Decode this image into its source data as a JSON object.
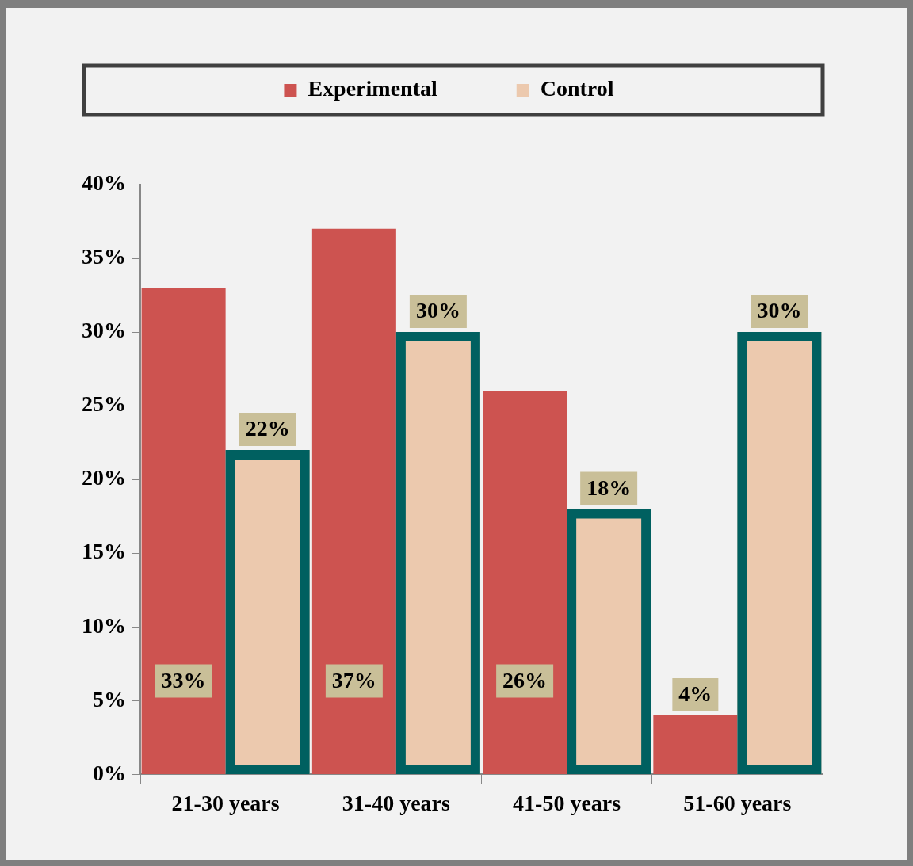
{
  "chart_data": {
    "type": "bar",
    "categories": [
      "21-30 years",
      "31-40 years",
      "41-50 years",
      "51-60 years"
    ],
    "series": [
      {
        "name": "Experimental",
        "color": "#cd5350",
        "values": [
          33,
          37,
          26,
          4
        ],
        "value_labels": [
          "33%",
          "37%",
          "26%",
          "4%"
        ]
      },
      {
        "name": "Control",
        "color": "#ecc9ae",
        "values": [
          22,
          30,
          18,
          30
        ],
        "value_labels": [
          "22%",
          "30%",
          "18%",
          "30%"
        ]
      }
    ],
    "ylim": [
      0,
      40
    ],
    "yticks": [
      {
        "value": 0,
        "label": "0%"
      },
      {
        "value": 5,
        "label": "5%"
      },
      {
        "value": 10,
        "label": "10%"
      },
      {
        "value": 15,
        "label": "15%"
      },
      {
        "value": 20,
        "label": "20%"
      },
      {
        "value": 25,
        "label": "25%"
      },
      {
        "value": 30,
        "label": "30%"
      },
      {
        "value": 35,
        "label": "35%"
      },
      {
        "value": 40,
        "label": "40%"
      }
    ],
    "grid": false,
    "legend": "top"
  }
}
